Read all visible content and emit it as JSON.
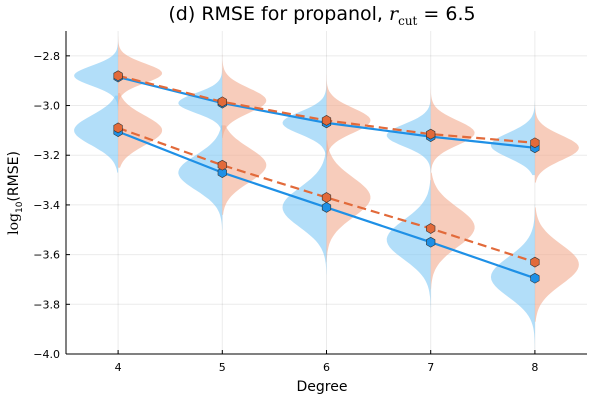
{
  "chart_data": {
    "type": "violin+line",
    "title": {
      "prefix": "(d) RMSE for propanol, ",
      "symbol": "r",
      "subscript": "cut",
      "suffix": " = 6.5"
    },
    "xlabel": "Degree",
    "ylabel": {
      "log": "log",
      "base": "10",
      "rest": "(RMSE)"
    },
    "x": [
      4,
      5,
      6,
      7,
      8
    ],
    "xlim": [
      3.5,
      8.5
    ],
    "ylim": [
      -4.0,
      -2.7
    ],
    "yticks": [
      -4.0,
      -3.8,
      -3.6,
      -3.4,
      -3.2,
      -3.0,
      -2.8
    ],
    "ytick_labels": [
      "−4.0",
      "−3.8",
      "−3.6",
      "−3.4",
      "−3.2",
      "−3.0",
      "−2.8"
    ],
    "grid": true,
    "legend": "none",
    "colors": {
      "blue": "#1e90e6",
      "blue_fill": "#7ec8f5",
      "orange": "#e26a3a",
      "orange_fill": "#f2aa8e"
    },
    "series": [
      {
        "name": "blue-upper",
        "color": "blue",
        "style": "solid",
        "values": [
          -2.885,
          -2.99,
          -3.07,
          -3.125,
          -3.17
        ]
      },
      {
        "name": "orange-upper",
        "color": "orange",
        "style": "dashed",
        "values": [
          -2.88,
          -2.985,
          -3.06,
          -3.115,
          -3.15
        ]
      },
      {
        "name": "blue-lower",
        "color": "blue",
        "style": "solid",
        "values": [
          -3.105,
          -3.27,
          -3.41,
          -3.55,
          -3.695
        ]
      },
      {
        "name": "orange-lower",
        "color": "orange",
        "style": "dashed",
        "values": [
          -3.09,
          -3.24,
          -3.37,
          -3.495,
          -3.63
        ]
      }
    ],
    "violins": [
      {
        "x": 4,
        "side": "left",
        "color": "blue",
        "center": -2.88,
        "sd": 0.04,
        "range": [
          -3.02,
          -2.73
        ]
      },
      {
        "x": 4,
        "side": "left",
        "color": "blue",
        "center": -3.1,
        "sd": 0.06,
        "range": [
          -3.27,
          -2.96
        ]
      },
      {
        "x": 4,
        "side": "right",
        "color": "orange",
        "center": -2.87,
        "sd": 0.04,
        "range": [
          -3.0,
          -2.7
        ]
      },
      {
        "x": 4,
        "side": "right",
        "color": "orange",
        "center": -3.1,
        "sd": 0.06,
        "range": [
          -3.25,
          -2.95
        ]
      },
      {
        "x": 5,
        "side": "left",
        "color": "blue",
        "center": -2.99,
        "sd": 0.04,
        "range": [
          -3.13,
          -2.85
        ]
      },
      {
        "x": 5,
        "side": "left",
        "color": "blue",
        "center": -3.27,
        "sd": 0.07,
        "range": [
          -3.5,
          -3.08
        ]
      },
      {
        "x": 5,
        "side": "right",
        "color": "orange",
        "center": -2.98,
        "sd": 0.05,
        "range": [
          -3.13,
          -2.79
        ]
      },
      {
        "x": 5,
        "side": "right",
        "color": "orange",
        "center": -3.24,
        "sd": 0.07,
        "range": [
          -3.44,
          -3.08
        ]
      },
      {
        "x": 6,
        "side": "left",
        "color": "blue",
        "center": -3.07,
        "sd": 0.045,
        "range": [
          -3.23,
          -2.84
        ]
      },
      {
        "x": 6,
        "side": "left",
        "color": "blue",
        "center": -3.41,
        "sd": 0.08,
        "range": [
          -3.68,
          -3.18
        ]
      },
      {
        "x": 6,
        "side": "right",
        "color": "orange",
        "center": -3.06,
        "sd": 0.05,
        "range": [
          -3.22,
          -2.84
        ]
      },
      {
        "x": 6,
        "side": "right",
        "color": "orange",
        "center": -3.37,
        "sd": 0.08,
        "range": [
          -3.63,
          -3.14
        ]
      },
      {
        "x": 7,
        "side": "left",
        "color": "blue",
        "center": -3.12,
        "sd": 0.045,
        "range": [
          -3.27,
          -2.95
        ]
      },
      {
        "x": 7,
        "side": "left",
        "color": "blue",
        "center": -3.54,
        "sd": 0.08,
        "range": [
          -3.84,
          -3.3
        ]
      },
      {
        "x": 7,
        "side": "right",
        "color": "orange",
        "center": -3.11,
        "sd": 0.05,
        "range": [
          -3.27,
          -2.78
        ]
      },
      {
        "x": 7,
        "side": "right",
        "color": "orange",
        "center": -3.49,
        "sd": 0.08,
        "range": [
          -3.74,
          -3.27
        ]
      },
      {
        "x": 8,
        "side": "left",
        "color": "blue",
        "center": -3.16,
        "sd": 0.05,
        "range": [
          -3.28,
          -2.98
        ]
      },
      {
        "x": 8,
        "side": "left",
        "color": "blue",
        "center": -3.69,
        "sd": 0.08,
        "range": [
          -3.98,
          -3.4
        ]
      },
      {
        "x": 8,
        "side": "right",
        "color": "orange",
        "center": -3.17,
        "sd": 0.05,
        "range": [
          -3.31,
          -2.97
        ]
      },
      {
        "x": 8,
        "side": "right",
        "color": "orange",
        "center": -3.64,
        "sd": 0.08,
        "range": [
          -3.87,
          -3.41
        ]
      }
    ]
  }
}
